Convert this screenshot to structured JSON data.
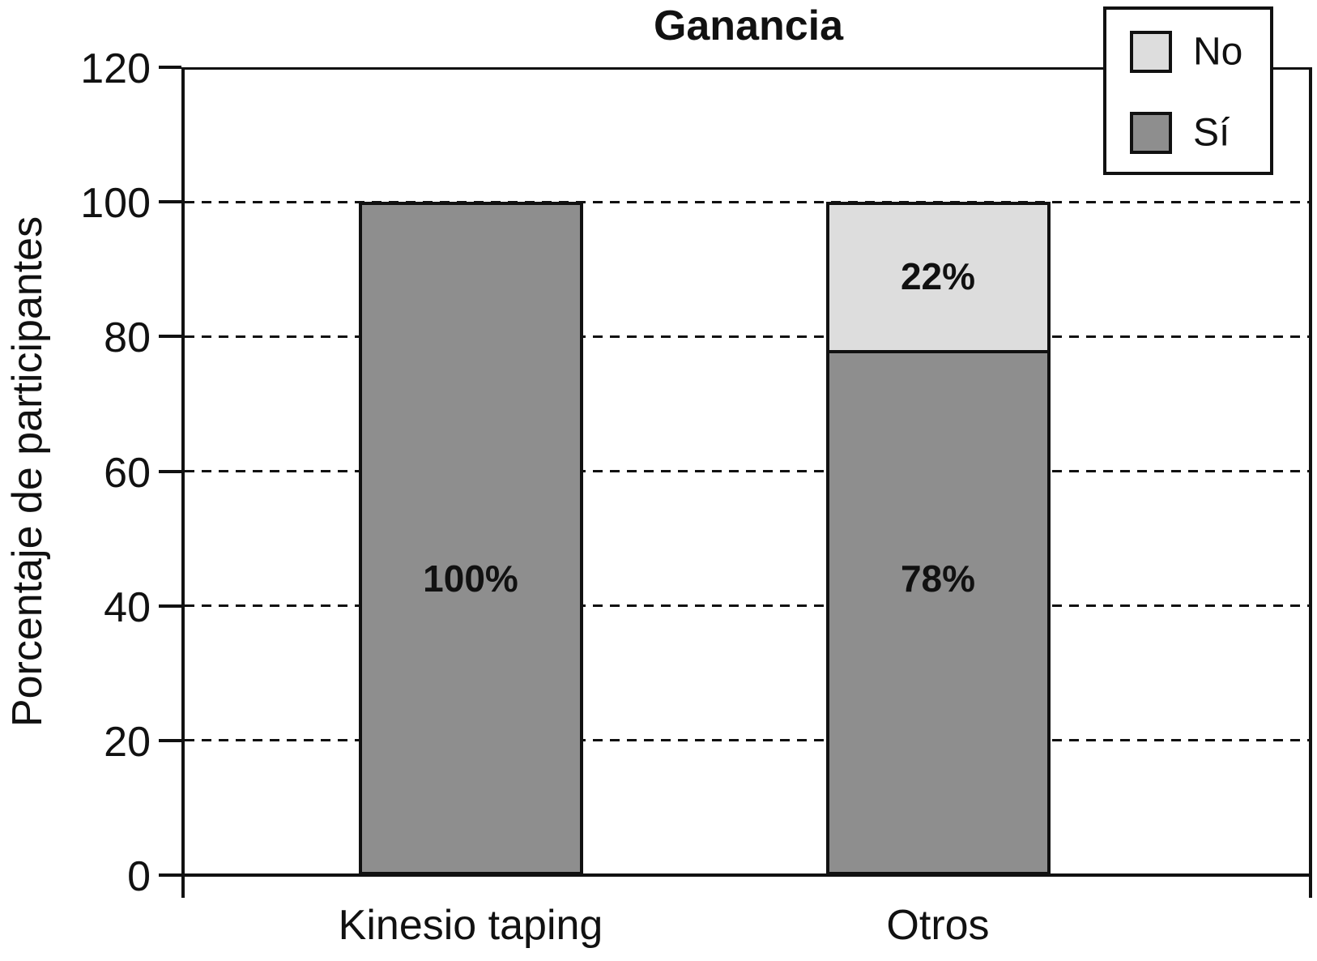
{
  "chart_data": {
    "type": "bar",
    "stacked": true,
    "title": "Ganancia",
    "ylabel": "Porcentaje de participantes",
    "xlabel": "",
    "categories": [
      "Kinesio taping",
      "Otros"
    ],
    "series": [
      {
        "name": "Sí",
        "color": "#8E8E8E",
        "values": [
          100,
          78
        ],
        "labels": [
          "100%",
          "78%"
        ]
      },
      {
        "name": "No",
        "color": "#DDDDDD",
        "values": [
          0,
          22
        ],
        "labels": [
          "",
          "22%"
        ]
      }
    ],
    "ylim": [
      0,
      120
    ],
    "yticks": [
      0,
      20,
      40,
      60,
      80,
      100,
      120
    ],
    "grid": "horizontal-dashed",
    "gridline_values": [
      20,
      40,
      60,
      80,
      100
    ],
    "legend_position": "top-right",
    "legend_entries": [
      {
        "label": "No",
        "color": "#DDDDDD"
      },
      {
        "label": "Sí",
        "color": "#8E8E8E"
      }
    ]
  }
}
